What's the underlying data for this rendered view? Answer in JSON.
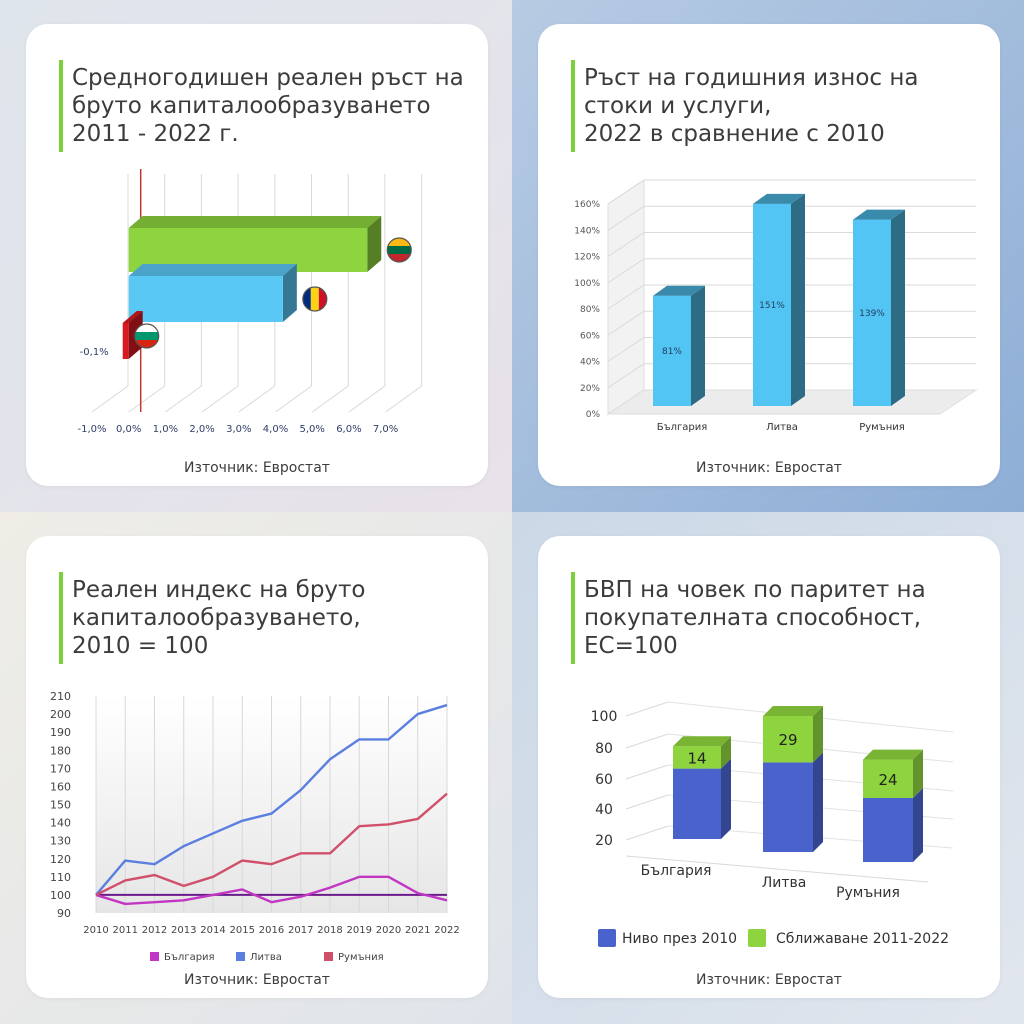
{
  "panels": [
    {
      "title": "Средногодишен реален ръст на\nбруто капиталообразуването\n2011 - 2022 г.",
      "source": "Източник: Евростат"
    },
    {
      "title": "Ръст на годишния износ на\nстоки и услуги,\n2022 в сравнение с 2010",
      "source": "Източник: Евростат"
    },
    {
      "title": "Реален индекс на бруто\nкапиталообразуването,\n2010 = 100",
      "source": "Източник: Евростат"
    },
    {
      "title": "БВП на човек по паритет на\nпокупателната способност,\nЕС=100",
      "source": "Източник: Евростат"
    }
  ],
  "chart_data": [
    {
      "type": "bar",
      "orientation": "horizontal",
      "categories": [
        "Литва",
        "Румъния",
        "България"
      ],
      "values": [
        6.5,
        4.2,
        -0.1
      ],
      "data_labels": [
        "",
        "",
        "-0,1%"
      ],
      "flags": [
        "Lithuania-flag",
        "Romania-flag",
        "Bulgaria-flag"
      ],
      "xlim": [
        -1,
        7
      ],
      "xticks": [
        "-1,0%",
        "0,0%",
        "1,0%",
        "2,0%",
        "3,0%",
        "4,0%",
        "5,0%",
        "6,0%",
        "7,0%"
      ],
      "colors": [
        "#8ed43e",
        "#5ac8f5",
        "#d71920"
      ],
      "grid": true,
      "style": "3d"
    },
    {
      "type": "bar",
      "categories": [
        "България",
        "Литва",
        "Румъния"
      ],
      "values": [
        81,
        151,
        139
      ],
      "data_labels": [
        "81%",
        "151%",
        "139%"
      ],
      "ylim": [
        0,
        160
      ],
      "yticks": [
        "0%",
        "20%",
        "40%",
        "60%",
        "80%",
        "100%",
        "120%",
        "140%",
        "160%"
      ],
      "color": "#53c5f4",
      "grid": true,
      "style": "3d"
    },
    {
      "type": "line",
      "x": [
        "2010",
        "2011",
        "2012",
        "2013",
        "2014",
        "2015",
        "2016",
        "2017",
        "2018",
        "2019",
        "2020",
        "2021",
        "2022"
      ],
      "series": [
        {
          "name": "България",
          "color": "#c137c4",
          "values": [
            100,
            95,
            96,
            97,
            100,
            103,
            96,
            99,
            104,
            110,
            110,
            101,
            97
          ]
        },
        {
          "name": "Литва",
          "color": "#5b7fe0",
          "values": [
            100,
            119,
            117,
            127,
            134,
            141,
            145,
            158,
            175,
            186,
            186,
            200,
            205
          ]
        },
        {
          "name": "Румъния",
          "color": "#d0506b",
          "values": [
            100,
            108,
            111,
            105,
            110,
            119,
            117,
            123,
            123,
            138,
            139,
            142,
            156
          ]
        }
      ],
      "reference_line": {
        "value": 100,
        "color": "#6a1a8a"
      },
      "ylim": [
        90,
        210
      ],
      "yticks": [
        "90",
        "100",
        "110",
        "120",
        "130",
        "140",
        "150",
        "160",
        "170",
        "180",
        "190",
        "200",
        "210"
      ],
      "legend": "bottom",
      "grid": true
    },
    {
      "type": "bar",
      "stacked": true,
      "categories": [
        "България",
        "Литва",
        "Румъния"
      ],
      "series": [
        {
          "name": "Ниво през 2010",
          "color": "#4a63cc",
          "values": [
            44,
            56,
            40
          ]
        },
        {
          "name": "Сближаване 2011-2022",
          "color": "#8ed43e",
          "values": [
            14,
            29,
            24
          ]
        }
      ],
      "data_labels": [
        "14",
        "29",
        "24"
      ],
      "yticks": [
        "20",
        "40",
        "60",
        "80",
        "100"
      ],
      "legend": "bottom",
      "style": "3d"
    }
  ]
}
